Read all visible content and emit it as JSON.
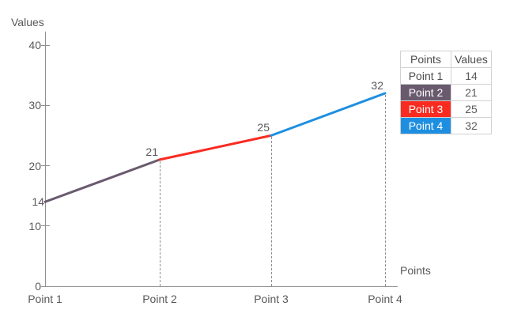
{
  "chart_data": {
    "type": "line",
    "title": "",
    "xlabel": "Points",
    "ylabel": "Values",
    "categories": [
      "Point 1",
      "Point 2",
      "Point 3",
      "Point 4"
    ],
    "values": [
      14,
      21,
      25,
      32
    ],
    "segment_colors": [
      "#6a5a6e",
      "#f92b21",
      "#1e8fe0"
    ],
    "ylim": [
      0,
      40
    ],
    "y_ticks": [
      {
        "label": "40",
        "value": 40,
        "axis_tick": true
      },
      {
        "label": "30",
        "value": 30,
        "axis_tick": true
      },
      {
        "label": "20",
        "value": 20,
        "axis_tick": true
      },
      {
        "label": "14",
        "value": 14,
        "axis_tick": false
      },
      {
        "label": "10",
        "value": 10,
        "axis_tick": true
      },
      {
        "label": "0",
        "value": 0,
        "axis_tick": true
      }
    ],
    "point_labels": [
      {
        "category_index": 1,
        "text": "21"
      },
      {
        "category_index": 2,
        "text": "25"
      },
      {
        "category_index": 3,
        "text": "32"
      }
    ],
    "drop_lines_at": [
      1,
      2,
      3
    ],
    "grid": "off",
    "legend_position": "right"
  },
  "legend_table": {
    "headers": [
      "Points",
      "Values"
    ],
    "rows": [
      {
        "point": "Point 1",
        "value": "14",
        "color": null
      },
      {
        "point": "Point 2",
        "value": "21",
        "color": "#6a5a6e"
      },
      {
        "point": "Point 3",
        "value": "25",
        "color": "#f92b21"
      },
      {
        "point": "Point 4",
        "value": "32",
        "color": "#1e8fe0"
      }
    ]
  },
  "colors": {
    "axis": "#8f8f8f",
    "text": "#595959",
    "table_border": "#d2d2d2",
    "segment_purple": "#6a5a6e",
    "segment_red": "#f92b21",
    "segment_blue": "#1e8fe0"
  }
}
